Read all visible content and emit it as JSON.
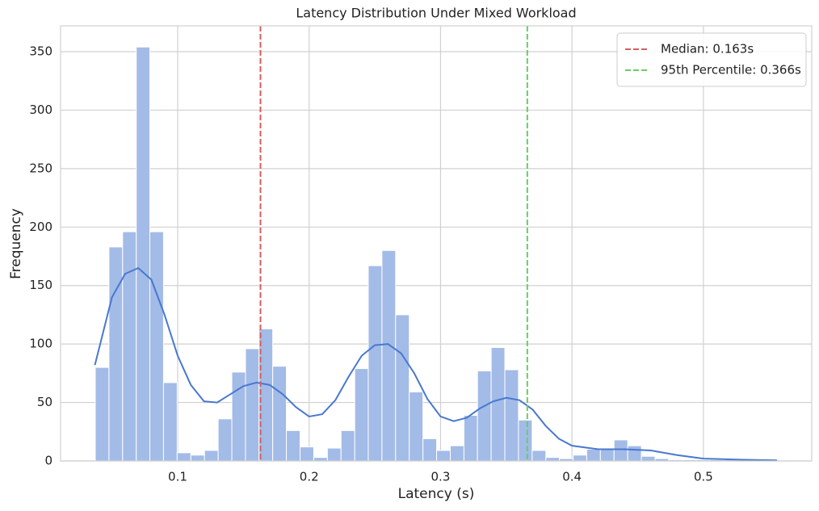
{
  "chart_data": {
    "type": "histogram",
    "title": "Latency Distribution Under Mixed Workload",
    "x_label": "Latency (s)",
    "y_label": "Frequency",
    "bins": [
      0.0373,
      0.0477,
      0.0581,
      0.0685,
      0.0788,
      0.0892,
      0.0996,
      0.11,
      0.1204,
      0.1308,
      0.1412,
      0.1516,
      0.1619,
      0.1723,
      0.1827,
      0.1931,
      0.2035,
      0.2139,
      0.2243,
      0.2347,
      0.245,
      0.2554,
      0.2658,
      0.2762,
      0.2866,
      0.297,
      0.3074,
      0.3178,
      0.3281,
      0.3385,
      0.3489,
      0.3593,
      0.3697,
      0.3801,
      0.3905,
      0.4009,
      0.4112,
      0.4216,
      0.432,
      0.4424,
      0.4528,
      0.4632,
      0.4736,
      0.484,
      0.4943,
      0.5047,
      0.5151,
      0.5255,
      0.5359,
      0.5463,
      0.5567
    ],
    "values": [
      80,
      183,
      196,
      354,
      196,
      67,
      7,
      5,
      9,
      36,
      76,
      96,
      113,
      81,
      26,
      12,
      3,
      11,
      26,
      79,
      167,
      180,
      125,
      59,
      19,
      9,
      13,
      39,
      77,
      97,
      78,
      35,
      9,
      3,
      2,
      5,
      10,
      11,
      18,
      13,
      4,
      2,
      1,
      1,
      1,
      1,
      1,
      1,
      1,
      1
    ],
    "color": "#a3bbe7",
    "kde": {
      "x": [
        0.037,
        0.05,
        0.06,
        0.07,
        0.08,
        0.09,
        0.1,
        0.11,
        0.12,
        0.13,
        0.14,
        0.15,
        0.16,
        0.17,
        0.18,
        0.19,
        0.2,
        0.21,
        0.22,
        0.23,
        0.24,
        0.25,
        0.26,
        0.27,
        0.28,
        0.29,
        0.3,
        0.31,
        0.32,
        0.33,
        0.34,
        0.35,
        0.36,
        0.37,
        0.38,
        0.39,
        0.4,
        0.42,
        0.44,
        0.46,
        0.48,
        0.5,
        0.53,
        0.556
      ],
      "values": [
        82,
        140,
        160,
        165,
        155,
        125,
        90,
        65,
        51,
        50,
        57,
        64,
        67,
        65,
        57,
        46,
        38,
        40,
        52,
        72,
        90,
        99,
        100,
        92,
        75,
        53,
        38,
        34,
        37,
        45,
        51,
        54,
        52,
        44,
        30,
        19,
        13,
        10,
        10,
        9,
        5,
        2,
        1,
        0.5
      ],
      "color": "#4878d0"
    },
    "lines": [
      {
        "value": 0.163,
        "label": "Median: 0.163s",
        "color": "#d65f5f"
      },
      {
        "value": 0.366,
        "label": "95th Percentile: 0.366s",
        "color": "#6acc64"
      }
    ],
    "xlim": [
      0.0109,
      0.5824
    ],
    "ylim": [
      0,
      372.1
    ],
    "xticks": [
      0.1,
      0.2,
      0.3,
      0.4,
      0.5
    ],
    "yticks": [
      0,
      50,
      100,
      150,
      200,
      250,
      300,
      350
    ],
    "grid": true,
    "legend": "upper right"
  }
}
